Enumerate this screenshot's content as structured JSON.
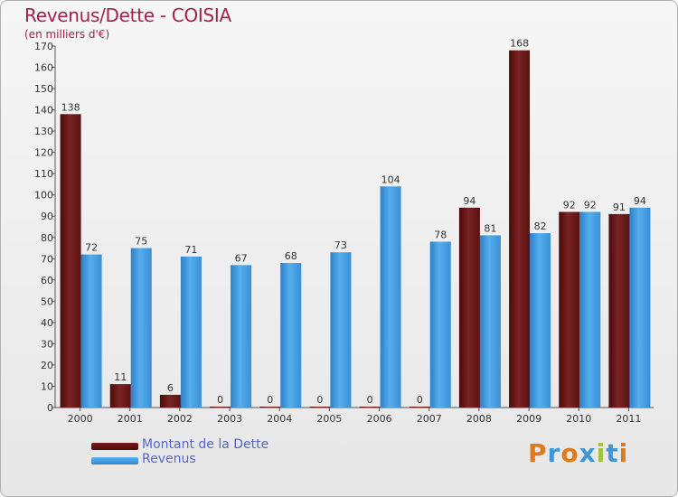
{
  "header": {
    "title": "Revenus/Dette - COISIA",
    "subtitle": "(en milliers d'€)"
  },
  "legend": {
    "debt_label": "Montant de la Dette",
    "revenue_label": "Revenus"
  },
  "logo": {
    "text": "Proxiti"
  },
  "colors": {
    "debt": "#6b1717",
    "revenue": "#3f97dd",
    "title": "#a0224a"
  },
  "chart_data": {
    "type": "bar",
    "title": "Revenus/Dette - COISIA",
    "subtitle": "(en milliers d'€)",
    "categories": [
      "2000",
      "2001",
      "2002",
      "2003",
      "2004",
      "2005",
      "2006",
      "2007",
      "2008",
      "2009",
      "2010",
      "2011"
    ],
    "series": [
      {
        "name": "Montant de la Dette",
        "values": [
          138,
          11,
          6,
          0,
          0,
          0,
          0,
          0,
          94,
          168,
          92,
          91
        ]
      },
      {
        "name": "Revenus",
        "values": [
          72,
          75,
          71,
          67,
          68,
          73,
          104,
          78,
          81,
          82,
          92,
          94
        ]
      }
    ],
    "ylim": [
      0,
      170
    ],
    "yticks": [
      0,
      10,
      20,
      30,
      40,
      50,
      60,
      70,
      80,
      90,
      100,
      110,
      120,
      130,
      140,
      150,
      160,
      170
    ],
    "grid": false,
    "legend_position": "bottom-left"
  }
}
